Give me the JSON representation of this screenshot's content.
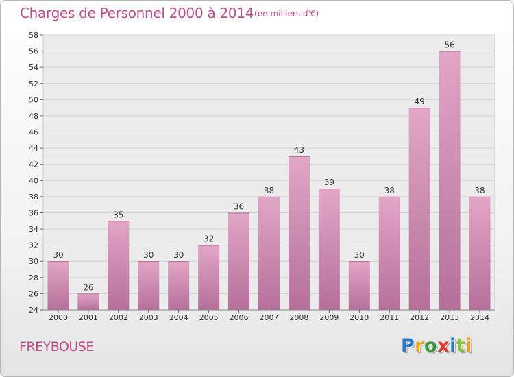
{
  "header": {
    "title": "Charges de Personnel 2000 à 2014",
    "subtitle": "(en milliers d'€)"
  },
  "footer": {
    "commune": "FREYBOUSE",
    "logo_letters": [
      "P",
      "r",
      "o",
      "x",
      "i",
      "t",
      "i"
    ],
    "logo_colors": [
      "#2a78c8",
      "#f2a01a",
      "#3a9a3a",
      "#e03a2a",
      "#2a78c8",
      "#8ac23a",
      "#f2a01a"
    ]
  },
  "chart_data": {
    "type": "bar",
    "title": "Charges de Personnel 2000 à 2014",
    "subtitle": "(en milliers d'€)",
    "categories": [
      "2000",
      "2001",
      "2002",
      "2003",
      "2004",
      "2005",
      "2006",
      "2007",
      "2008",
      "2009",
      "2010",
      "2011",
      "2012",
      "2013",
      "2014"
    ],
    "values": [
      30,
      26,
      35,
      30,
      30,
      32,
      36,
      38,
      43,
      39,
      30,
      38,
      49,
      56,
      38
    ],
    "ylim": [
      24,
      58
    ],
    "yticks": [
      24,
      26,
      28,
      30,
      32,
      34,
      36,
      38,
      40,
      42,
      44,
      46,
      48,
      50,
      52,
      54,
      56,
      58
    ],
    "grid": true,
    "bar_color": "#e2a6c6",
    "bar_color_dark": "#b5709a"
  }
}
